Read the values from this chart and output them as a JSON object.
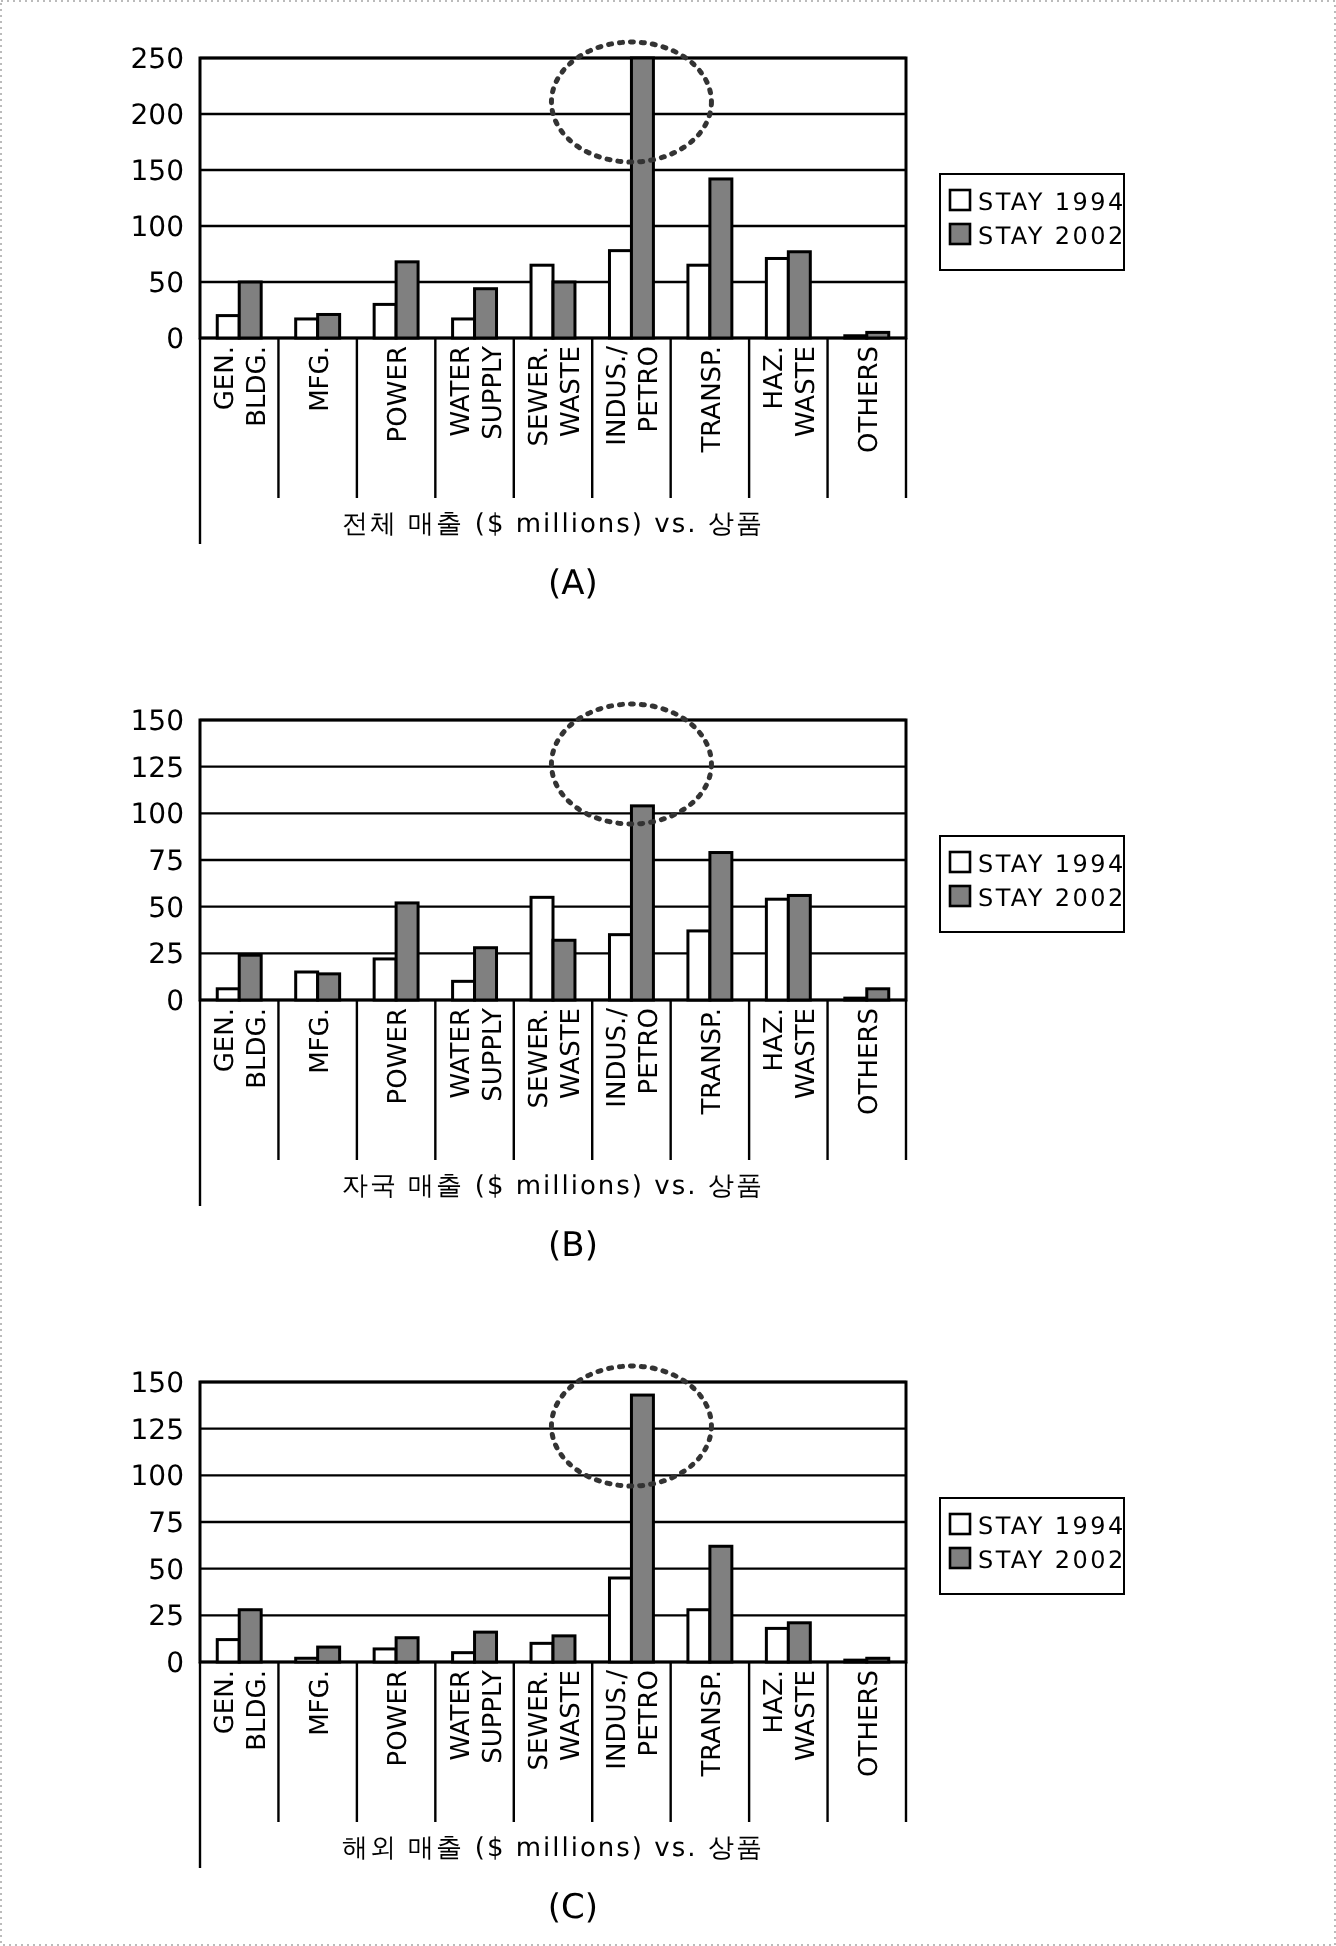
{
  "chart_data": [
    {
      "type": "bar",
      "xlabel": "전체 매출 ($ millions) vs. 상품",
      "annotations": [
        "(A)"
      ],
      "categories": [
        "GEN. BLDG.",
        "MFG.",
        "POWER",
        "WATER SUPPLY",
        "SEWER. WASTE",
        "INDUS./ PETRO",
        "TRANSP.",
        "HAZ. WASTE",
        "OTHERS"
      ],
      "series": [
        {
          "name": "STAY 1994",
          "color": "#ffffff",
          "values": [
            20,
            17,
            30,
            17,
            65,
            78,
            65,
            71,
            2
          ]
        },
        {
          "name": "STAY 2002",
          "color": "#808080",
          "values": [
            50,
            21,
            68,
            44,
            50,
            250,
            142,
            77,
            5
          ]
        }
      ],
      "ylim": [
        0,
        250
      ],
      "yticks": [
        0,
        50,
        100,
        150,
        200,
        250
      ],
      "grid": "y",
      "legend": "right"
    },
    {
      "type": "bar",
      "xlabel": "자국 매출 ($ millions) vs. 상품",
      "annotations": [
        "(B)"
      ],
      "categories": [
        "GEN. BLDG.",
        "MFG.",
        "POWER",
        "WATER SUPPLY",
        "SEWER. WASTE",
        "INDUS./ PETRO",
        "TRANSP.",
        "HAZ. WASTE",
        "OTHERS"
      ],
      "series": [
        {
          "name": "STAY 1994",
          "color": "#ffffff",
          "values": [
            6,
            15,
            22,
            10,
            55,
            35,
            37,
            54,
            1
          ]
        },
        {
          "name": "STAY 2002",
          "color": "#808080",
          "values": [
            24,
            14,
            52,
            28,
            32,
            104,
            79,
            56,
            6
          ]
        }
      ],
      "ylim": [
        0,
        150
      ],
      "yticks": [
        0,
        25,
        50,
        75,
        100,
        125,
        150
      ],
      "grid": "y",
      "legend": "right"
    },
    {
      "type": "bar",
      "xlabel": "해외 매출 ($ millions) vs. 상품",
      "annotations": [
        "(C)"
      ],
      "categories": [
        "GEN. BLDG.",
        "MFG.",
        "POWER",
        "WATER SUPPLY",
        "SEWER. WASTE",
        "INDUS./ PETRO",
        "TRANSP.",
        "HAZ. WASTE",
        "OTHERS"
      ],
      "series": [
        {
          "name": "STAY 1994",
          "color": "#ffffff",
          "values": [
            12,
            2,
            7,
            5,
            10,
            45,
            28,
            18,
            1
          ]
        },
        {
          "name": "STAY 2002",
          "color": "#808080",
          "values": [
            28,
            8,
            13,
            16,
            14,
            143,
            62,
            21,
            2
          ]
        }
      ],
      "ylim": [
        0,
        150
      ],
      "yticks": [
        0,
        25,
        50,
        75,
        100,
        125,
        150
      ],
      "grid": "y",
      "legend": "right"
    }
  ]
}
